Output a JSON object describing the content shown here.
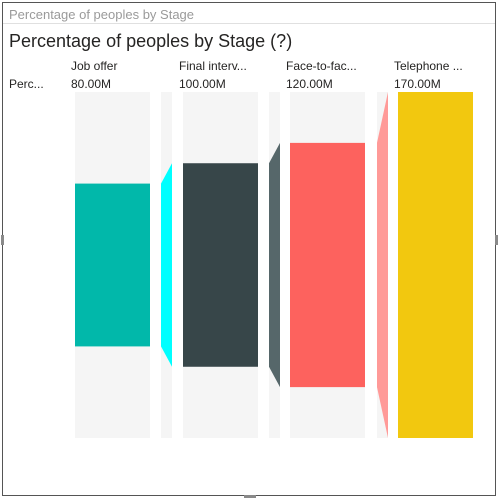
{
  "header": {
    "title": "Percentage of peoples by Stage"
  },
  "visual": {
    "title": "Percentage of peoples by Stage (?)",
    "row_label": "Perc..."
  },
  "chart_data": {
    "type": "bar",
    "chart_subtype": "funnel",
    "title": "Percentage of peoples by Stage (?)",
    "categories": [
      "Job offer",
      "Final interv...",
      "Face-to-fac...",
      "Telephone ..."
    ],
    "category_labels_truncated": true,
    "values": [
      80000000,
      100000000,
      120000000,
      170000000
    ],
    "value_labels": [
      "80.00M",
      "100.00M",
      "120.00M",
      "170.00M"
    ],
    "colors": [
      "#01B8AA",
      "#374649",
      "#FD625E",
      "#F2C80F"
    ],
    "transition_colors": [
      "#00FFFF",
      "#56676A",
      "#FF9A98"
    ],
    "track_color": "#F5F5F5",
    "legend": "none",
    "grid": false
  }
}
